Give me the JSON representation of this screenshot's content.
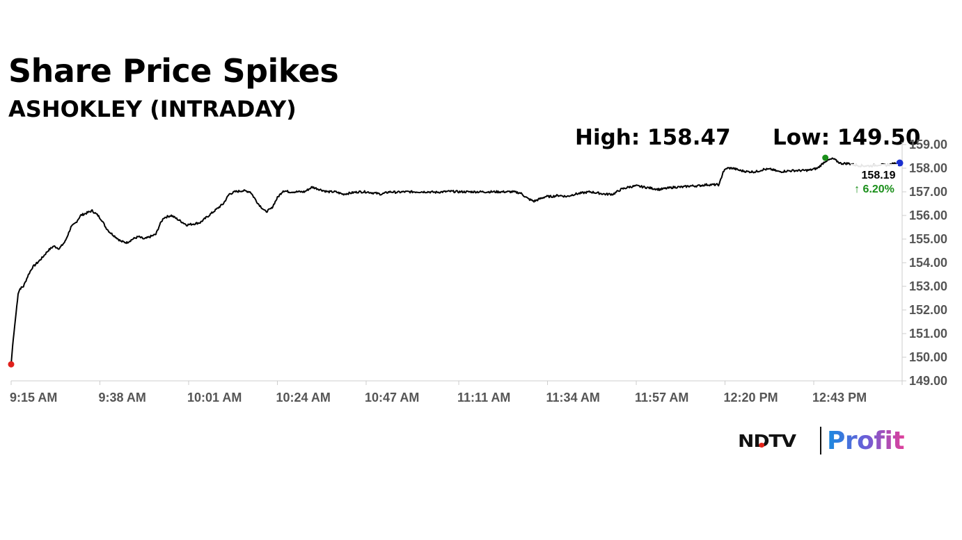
{
  "header": {
    "title": "Share Price Spikes",
    "subtitle": "ASHOKLEY (INTRADAY)",
    "high_label": "High: 158.47",
    "low_label": "Low: 149.50"
  },
  "callout": {
    "last_price": "158.19",
    "change": "↑ 6.20%"
  },
  "branding": {
    "brand": "NDTV",
    "product": "Profit"
  },
  "colors": {
    "line": "#000000",
    "low_marker": "#e0201c",
    "high_marker": "#1a8f1a",
    "last_marker": "#1a2fd0",
    "change_up": "#1a8f1a",
    "axis": "#cccccc"
  },
  "chart_data": {
    "type": "line",
    "title": "Share Price Spikes",
    "subtitle": "ASHOKLEY (INTRADAY)",
    "xlabel": "",
    "ylabel": "",
    "grid": false,
    "y_axis_side": "right",
    "ylim": [
      149.0,
      159.0
    ],
    "y_ticks": [
      "149.00",
      "150.00",
      "151.00",
      "152.00",
      "153.00",
      "154.00",
      "155.00",
      "156.00",
      "157.00",
      "158.00",
      "159.00"
    ],
    "x_ticks": [
      "9:15 AM",
      "9:38 AM",
      "10:01 AM",
      "10:24 AM",
      "10:47 AM",
      "11:11 AM",
      "11:34 AM",
      "11:57 AM",
      "12:20 PM",
      "12:43 PM"
    ],
    "x_tick_minutes": [
      0,
      23,
      46,
      69,
      92,
      116,
      139,
      162,
      185,
      208
    ],
    "x_range_minutes": [
      0,
      231
    ],
    "series": [
      {
        "x_minutes": [
          0,
          0.4,
          0.9,
          1.3,
          1.8,
          2.3,
          3.2,
          4.5,
          5.5,
          6.8,
          8.0,
          9.5,
          11.0,
          12.5,
          14.0,
          15.5,
          16.8,
          18.0,
          19.5,
          21.0,
          22.5,
          23.5,
          24.5,
          25.5,
          27.0,
          28.5,
          30.0,
          31.5,
          33.0,
          34.5,
          36.0,
          37.5,
          38.5,
          39.5,
          40.5,
          41.5,
          43.5,
          45.5,
          47.5,
          49.0,
          50.5,
          52.0,
          53.5,
          55.0,
          56.5,
          58.0,
          60.0,
          62.0,
          64.0,
          66.0,
          67.5,
          69.0,
          70.5,
          72.0,
          74.0,
          76.0,
          78.0,
          80.0,
          82.0,
          84.0,
          86.0,
          88.0,
          90.0,
          92.0,
          94.0,
          96.0,
          98.0,
          100.0,
          102.0,
          104.0,
          106.0,
          108.0,
          110.0,
          112.0,
          114.0,
          116.0,
          118.0,
          120.0,
          122.0,
          124.0,
          126.0,
          128.0,
          130.0,
          132.0,
          134.0,
          135.5,
          137.0,
          138.5,
          140.0,
          142.0,
          144.0,
          146.0,
          148.0,
          150.0,
          152.0,
          154.0,
          156.0,
          158.0,
          160.0,
          162.0,
          164.0,
          166.0,
          168.0,
          170.0,
          172.0,
          174.0,
          176.0,
          178.0,
          180.0,
          182.0,
          183.5,
          184.5,
          185.5,
          187.0,
          189.0,
          191.0,
          193.0,
          195.0,
          197.0,
          199.0,
          201.0,
          203.0,
          205.0,
          207.0,
          209.0,
          211.0,
          213.0,
          215.0,
          217.0,
          219.0,
          221.0,
          223.0,
          225.0,
          227.0,
          229.0,
          231.0
        ],
        "y": [
          149.7,
          150.5,
          151.3,
          151.9,
          152.7,
          152.9,
          153.0,
          153.5,
          153.8,
          154.0,
          154.2,
          154.5,
          154.7,
          154.6,
          154.9,
          155.5,
          155.7,
          156.0,
          156.1,
          156.2,
          156.0,
          155.8,
          155.5,
          155.3,
          155.1,
          154.9,
          154.85,
          155.0,
          155.1,
          155.0,
          155.1,
          155.2,
          155.6,
          155.9,
          155.95,
          156.0,
          155.8,
          155.6,
          155.65,
          155.7,
          155.9,
          156.1,
          156.3,
          156.5,
          156.9,
          157.0,
          157.05,
          157.0,
          156.5,
          156.15,
          156.3,
          156.75,
          157.05,
          157.0,
          157.0,
          157.0,
          157.2,
          157.1,
          157.0,
          157.0,
          156.9,
          156.95,
          157.0,
          157.0,
          156.95,
          156.9,
          157.0,
          156.98,
          157.0,
          157.0,
          157.0,
          157.0,
          156.98,
          157.0,
          157.02,
          157.0,
          157.0,
          157.0,
          157.0,
          157.0,
          157.0,
          157.0,
          157.0,
          156.95,
          156.7,
          156.6,
          156.7,
          156.8,
          156.8,
          156.85,
          156.8,
          156.9,
          156.95,
          157.0,
          156.95,
          156.9,
          156.9,
          157.1,
          157.2,
          157.25,
          157.2,
          157.15,
          157.1,
          157.15,
          157.2,
          157.2,
          157.25,
          157.25,
          157.3,
          157.3,
          157.3,
          157.85,
          158.0,
          158.0,
          157.9,
          157.85,
          157.85,
          157.95,
          157.95,
          157.85,
          157.88,
          157.9,
          157.9,
          157.92,
          158.0,
          158.3,
          158.4,
          158.2,
          158.2,
          158.12,
          158.1,
          158.1,
          158.15,
          158.12,
          158.2,
          158.19
        ]
      }
    ],
    "annotations": {
      "high": 158.47,
      "low": 149.5,
      "last": 158.19,
      "change_percent": 6.2
    }
  }
}
